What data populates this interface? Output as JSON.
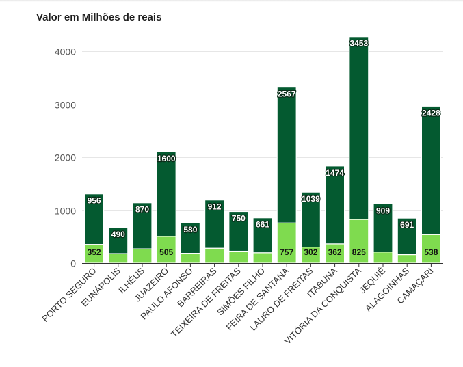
{
  "title": "Valor em Milhões de reais",
  "colors": {
    "dark_series": "#045a30",
    "light_series": "#7fdb4f",
    "grid": "#e6e6e6",
    "axis": "#333333",
    "label_light_text": "#ffffff",
    "label_dark_text": "#111111"
  },
  "chart_data": {
    "type": "bar",
    "stacked": true,
    "title": "Valor em Milhões de reais",
    "xlabel": "",
    "ylabel": "",
    "ylim": [
      0,
      4300
    ],
    "yticks": [
      0,
      1000,
      2000,
      3000,
      4000
    ],
    "categories": [
      "PORTO SEGURO",
      "EUNÁPOLIS",
      "ILHÉUS",
      "JUAZEIRO",
      "PAULO AFONSO",
      "BARREIRAS",
      "TEIXEIRA DE FREITAS",
      "SIMÕES FILHO",
      "FEIRA DE SANTANA",
      "LAURO DE FREITAS",
      "ITABUNA",
      "VITÓRIA DA CONQUISTA",
      "JEQUIÉ",
      "ALAGOINHAS",
      "CAMAÇARI"
    ],
    "series": [
      {
        "name": "base",
        "color": "#7fdb4f",
        "values": [
          352,
          180,
          270,
          505,
          185,
          280,
          225,
          195,
          757,
          302,
          362,
          825,
          210,
          160,
          538
        ],
        "labels": [
          "352",
          "",
          "",
          "505",
          "",
          "",
          "",
          "",
          "757",
          "302",
          "362",
          "825",
          "",
          "",
          "538"
        ]
      },
      {
        "name": "top",
        "color": "#045a30",
        "values": [
          956,
          490,
          870,
          1600,
          580,
          912,
          750,
          661,
          2567,
          1039,
          1474,
          3453,
          909,
          691,
          2428
        ],
        "labels": [
          "956",
          "490",
          "870",
          "1600",
          "580",
          "912",
          "750",
          "661",
          "2567",
          "1039",
          "1474",
          "3453",
          "909",
          "691",
          "2428"
        ]
      }
    ]
  }
}
